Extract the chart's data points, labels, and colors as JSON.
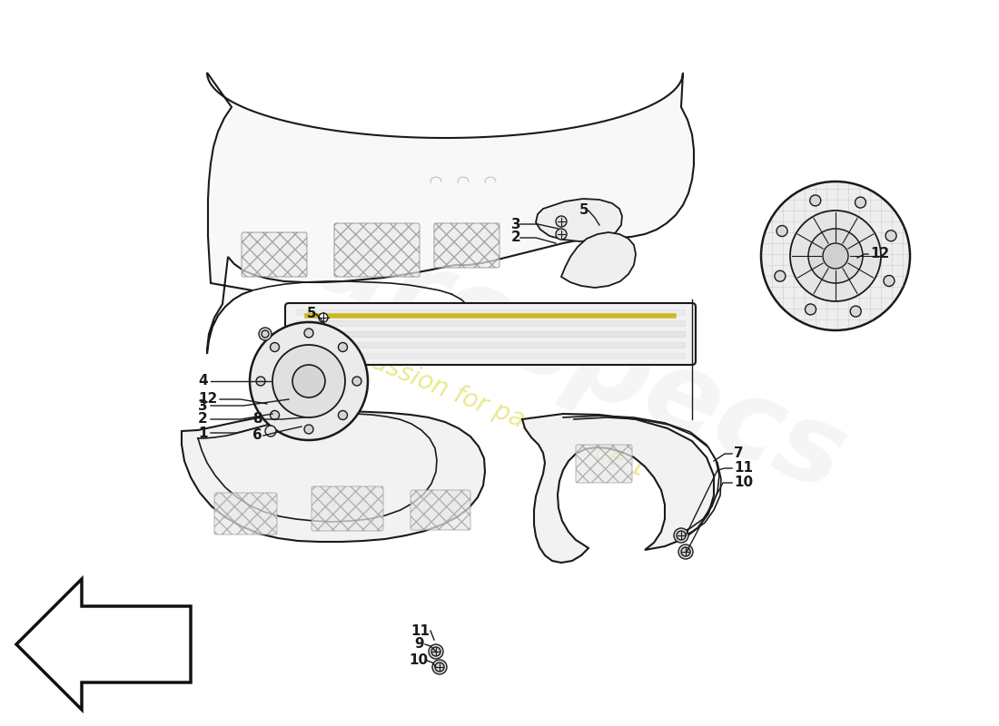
{
  "bg_color": "#ffffff",
  "line_color": "#1a1a1a",
  "watermark1": "eurospecs",
  "watermark2": "a passion for parts since 1",
  "watermark1_color": "#c8c8c8",
  "watermark2_color": "#d4d420",
  "parts_outline_color": "#1a1a1a",
  "parts_fill": "#f8f8f8",
  "hatch_color": "#aaaaaa",
  "yellow_stripe": "#c8b400",
  "arrow_fill": "#ffffff",
  "labels": [
    "1",
    "2",
    "3",
    "4",
    "5",
    "6",
    "7",
    "8",
    "9",
    "10",
    "11",
    "12"
  ],
  "label_fontsize": 11
}
